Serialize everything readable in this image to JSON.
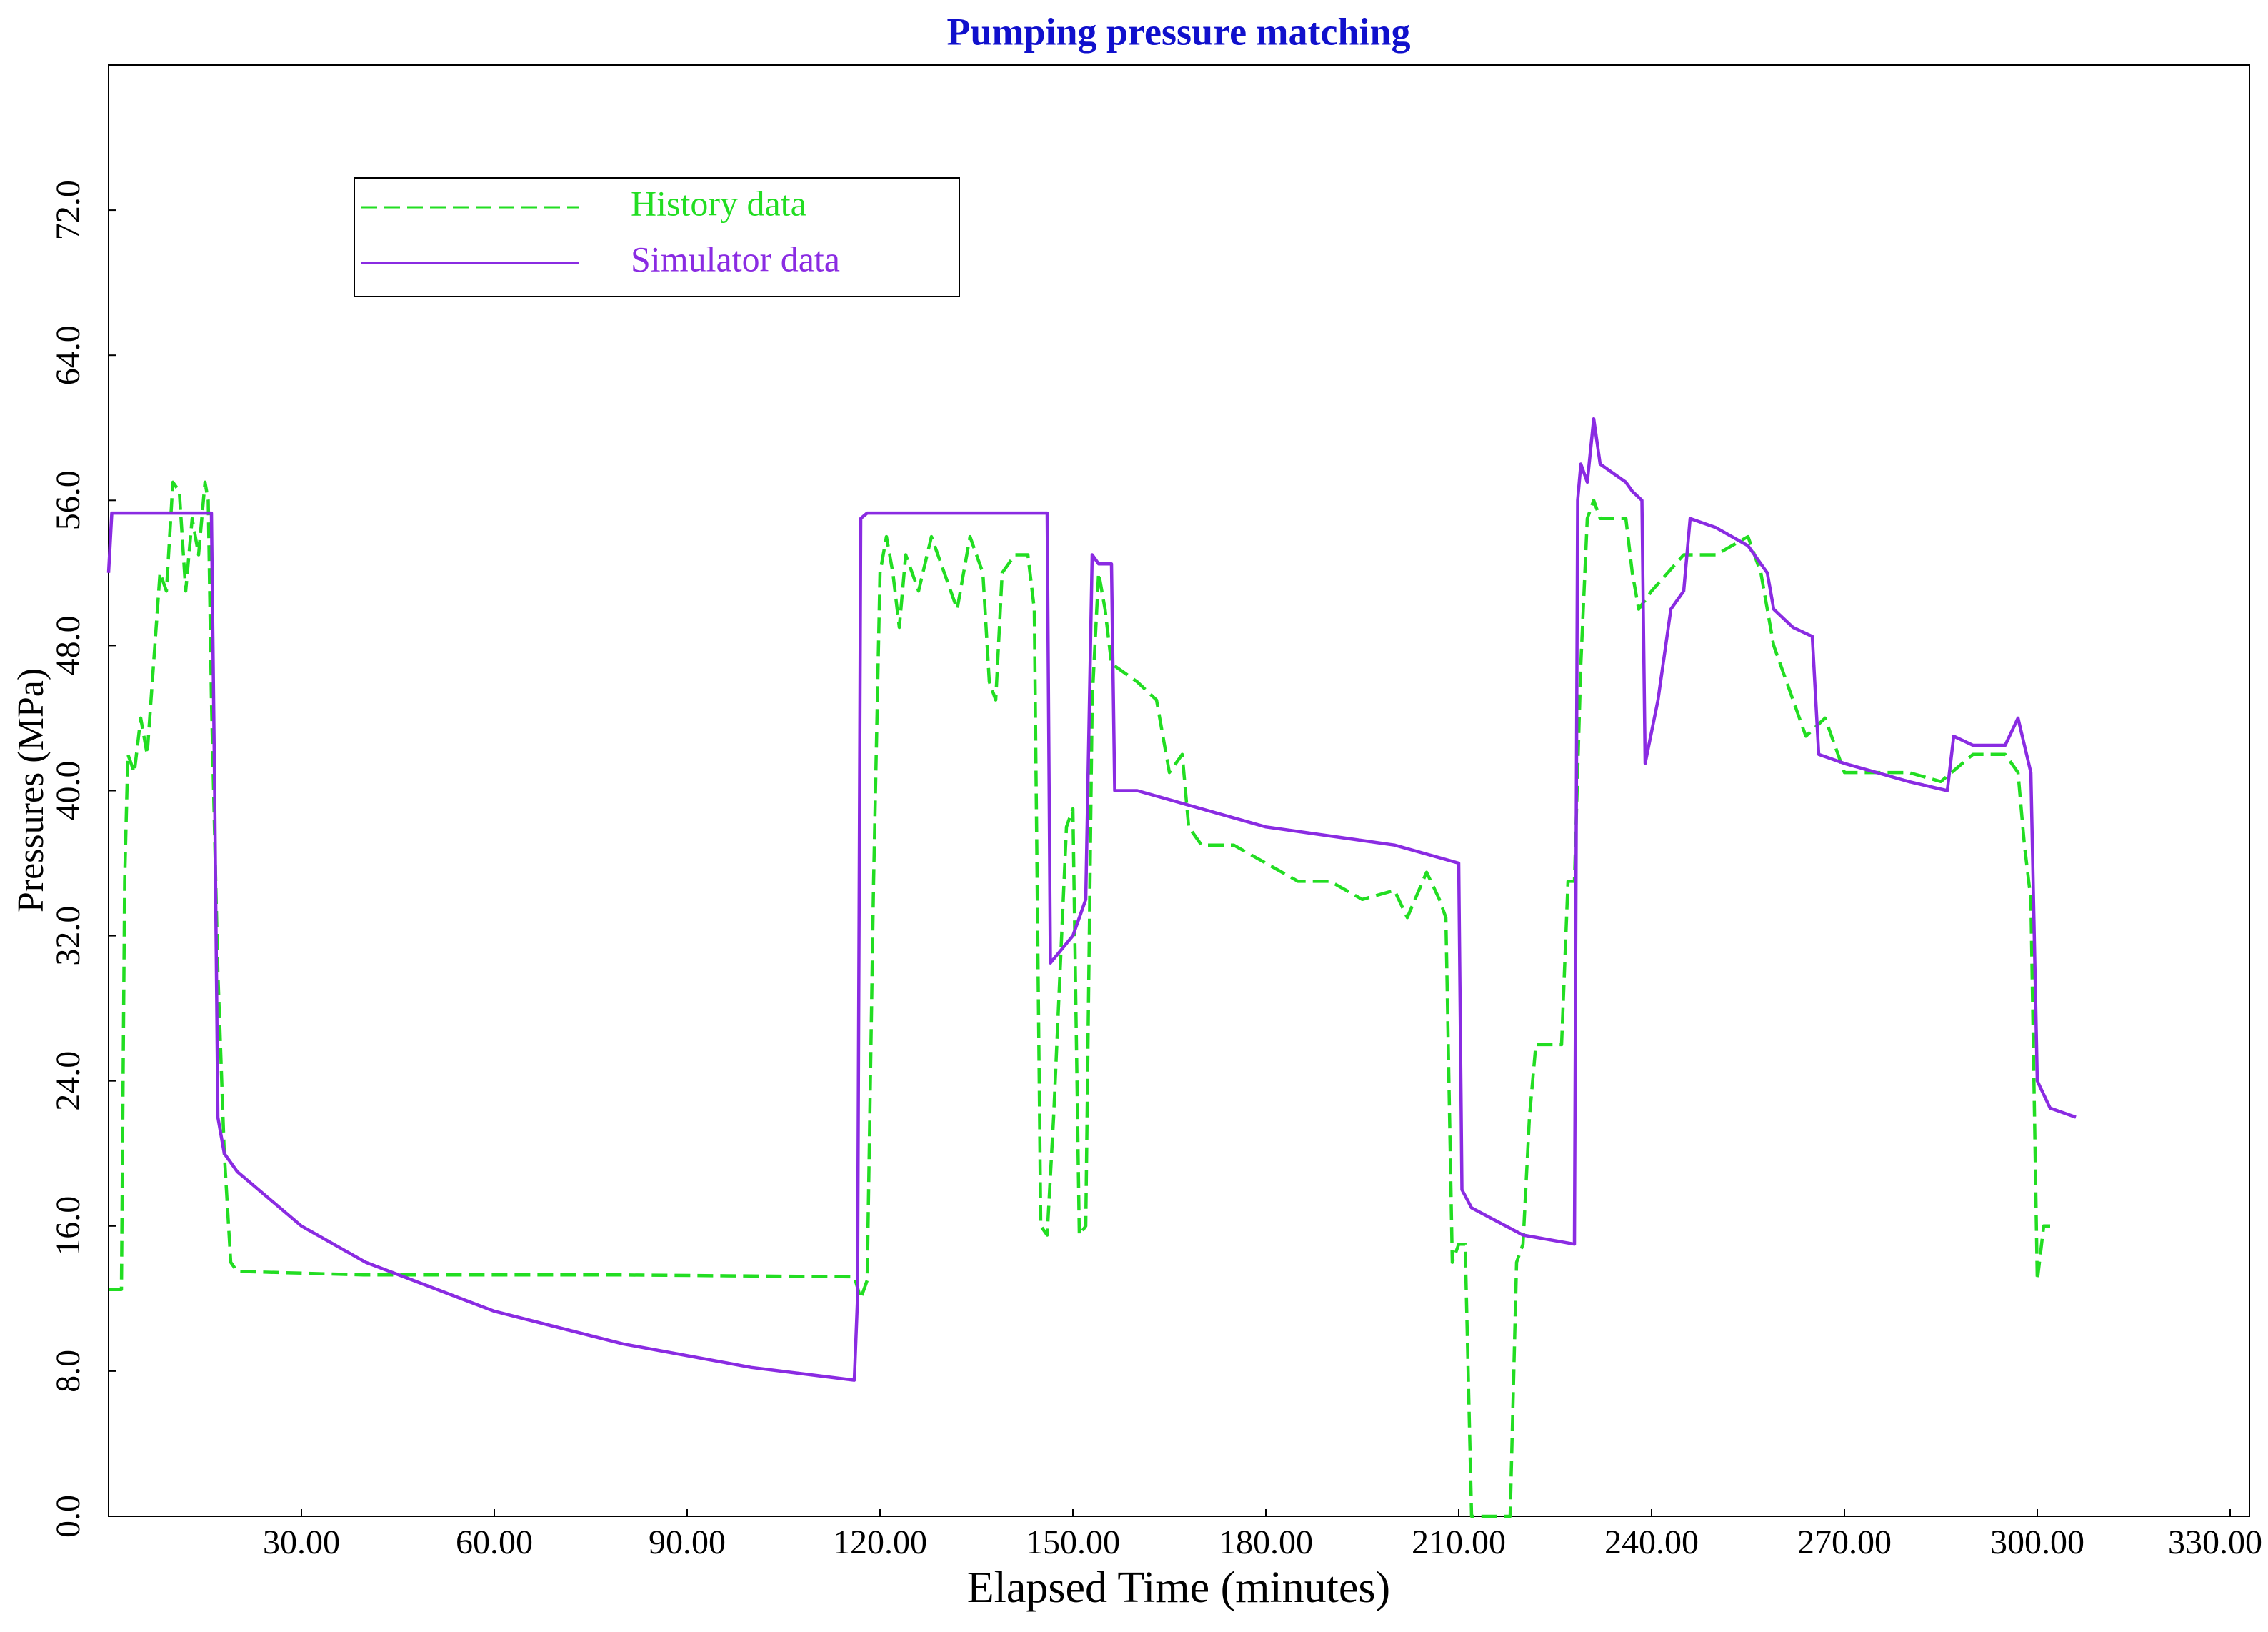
{
  "chart_data": {
    "type": "line",
    "title": "Pumping pressure matching",
    "x_label": "Elapsed Time (minutes)",
    "y_label": "Pressures (MPa)",
    "xlim": [
      0,
      333
    ],
    "ylim": [
      0,
      80
    ],
    "xticks": [
      {
        "value": 30,
        "label": "30.00"
      },
      {
        "value": 60,
        "label": "60.00"
      },
      {
        "value": 90,
        "label": "90.00"
      },
      {
        "value": 120,
        "label": "120.00"
      },
      {
        "value": 150,
        "label": "150.00"
      },
      {
        "value": 180,
        "label": "180.00"
      },
      {
        "value": 210,
        "label": "210.00"
      },
      {
        "value": 240,
        "label": "240.00"
      },
      {
        "value": 270,
        "label": "270.00"
      },
      {
        "value": 300,
        "label": "300.00"
      },
      {
        "value": 330,
        "label": "330.00"
      }
    ],
    "yticks": [
      {
        "value": 0,
        "label": "0.0"
      },
      {
        "value": 8,
        "label": "8.0"
      },
      {
        "value": 16,
        "label": "16.0"
      },
      {
        "value": 24,
        "label": "24.0"
      },
      {
        "value": 32,
        "label": "32.0"
      },
      {
        "value": 40,
        "label": "40.0"
      },
      {
        "value": 48,
        "label": "48.0"
      },
      {
        "value": 56,
        "label": "56.0"
      },
      {
        "value": 64,
        "label": "64.0"
      },
      {
        "value": 72,
        "label": "72.0"
      }
    ],
    "grid": false,
    "legend": "upper left",
    "series": [
      {
        "name": "History data",
        "color": "#22dd22",
        "dashed": true,
        "x": [
          0,
          2,
          2.5,
          3,
          4,
          5,
          6,
          7,
          8,
          9,
          10,
          11,
          12,
          13,
          14,
          15,
          15.5,
          16,
          17,
          18,
          19,
          20,
          40,
          80,
          116,
          117,
          118,
          119,
          120,
          121,
          122,
          123,
          124,
          126,
          128,
          130,
          132,
          134,
          136,
          137,
          138,
          139,
          141,
          143,
          144,
          145,
          146,
          147,
          148,
          149,
          150,
          151,
          152,
          153,
          154,
          155,
          156,
          160,
          163,
          165,
          167,
          168,
          170,
          175,
          180,
          185,
          190,
          195,
          200,
          202,
          205,
          207,
          208,
          209,
          210,
          211,
          212,
          218,
          219,
          220,
          221,
          222,
          226,
          227,
          228,
          229,
          230,
          231,
          232,
          236,
          237,
          238,
          240,
          245,
          250,
          255,
          257,
          259,
          262,
          264,
          267,
          270,
          275,
          280,
          285,
          290,
          295,
          297,
          298,
          299,
          300,
          301,
          302
        ],
        "values": [
          12.5,
          12.5,
          35,
          42,
          41,
          44,
          42,
          47,
          52,
          51,
          57,
          56.5,
          51,
          55,
          53,
          57,
          56,
          45,
          30,
          20,
          14,
          13.5,
          13.3,
          13.3,
          13.2,
          12,
          13,
          35,
          52,
          54,
          52,
          49,
          53,
          51,
          54,
          52,
          50,
          54,
          52,
          46,
          45,
          52,
          53,
          53,
          50,
          16,
          15.5,
          22,
          30,
          38,
          39,
          15.5,
          16,
          45,
          52,
          50,
          47,
          46,
          45,
          41,
          42,
          38,
          37,
          37,
          36,
          35,
          35,
          34,
          34.5,
          33,
          35.5,
          34,
          33,
          14,
          15,
          15,
          0,
          0,
          14,
          15,
          22,
          26,
          26,
          35,
          35,
          47,
          55,
          56,
          55,
          55,
          52,
          50,
          51,
          53,
          53,
          54,
          52,
          48,
          45,
          43,
          44,
          41,
          41,
          41,
          40.5,
          42,
          42,
          41,
          37,
          34,
          13,
          16,
          16
        ]
      },
      {
        "name": "Simulator data",
        "color": "#8a2be2",
        "dashed": false,
        "x": [
          0,
          0.5,
          16,
          16.5,
          17,
          18,
          20,
          30,
          40,
          60,
          80,
          100,
          116,
          116.5,
          117,
          118,
          146,
          146.5,
          150,
          152,
          153,
          154,
          156,
          156.5,
          160,
          170,
          180,
          190,
          200,
          210,
          210.5,
          212,
          220,
          228,
          228.5,
          229,
          230,
          231,
          232,
          236,
          237,
          238.5,
          239,
          241,
          243,
          245,
          246,
          250,
          255,
          258,
          259,
          262,
          265,
          266,
          270,
          275,
          280,
          286,
          287,
          290,
          295,
          297,
          299,
          300,
          302,
          306
        ],
        "values": [
          52,
          55.3,
          55.3,
          40,
          22,
          20,
          19,
          16,
          14,
          11.3,
          9.5,
          8.2,
          7.5,
          12,
          55,
          55.3,
          55.3,
          30.5,
          32,
          34,
          53,
          52.5,
          52.5,
          40,
          40,
          39,
          38,
          37.5,
          37,
          36,
          18,
          17,
          15.5,
          15,
          56,
          58,
          57,
          60.5,
          58,
          57,
          56.5,
          56,
          41.5,
          45,
          50,
          51,
          55,
          54.5,
          53.5,
          52,
          50,
          49,
          48.5,
          42,
          41.5,
          41,
          40.5,
          40,
          43,
          42.5,
          42.5,
          44,
          41,
          24,
          22.5,
          22
        ]
      }
    ]
  }
}
